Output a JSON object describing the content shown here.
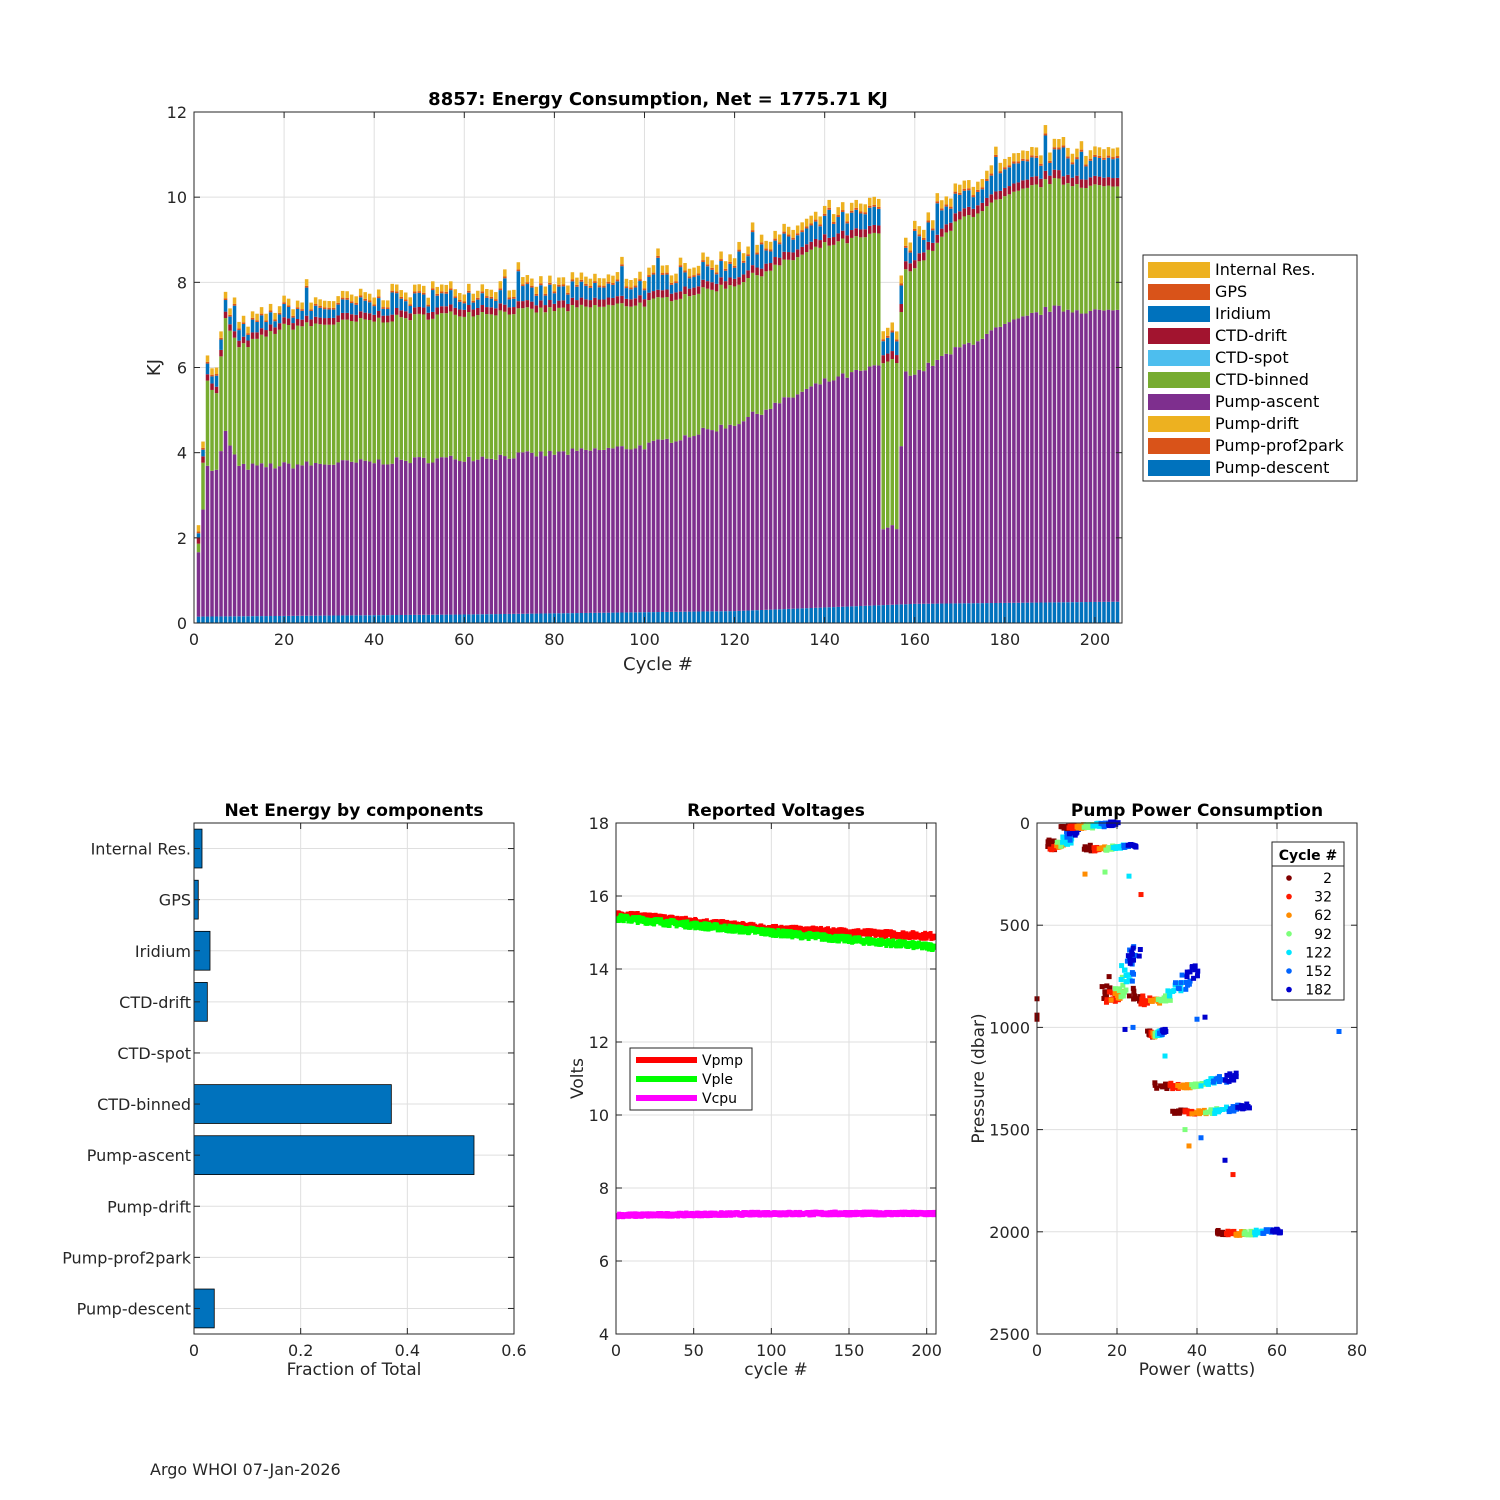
{
  "footer": "Argo WHOI 07-Jan-2026",
  "chart_data": [
    {
      "id": "energy",
      "type": "bar",
      "stacked": true,
      "title": "8857: Energy Consumption,  Net = 1775.71 KJ",
      "xlabel": "Cycle #",
      "ylabel": "KJ",
      "xlim": [
        0,
        206
      ],
      "ylim": [
        0,
        12
      ],
      "xticks": [
        0,
        20,
        40,
        60,
        80,
        100,
        120,
        140,
        160,
        180,
        200
      ],
      "yticks": [
        0,
        2,
        4,
        6,
        8,
        10,
        12
      ],
      "grid": true,
      "legend_position": "right",
      "cycles": {
        "start": 1,
        "end": 205
      },
      "series": [
        {
          "name": "Pump-descent",
          "color": "#0072BD",
          "knots": [
            [
              1,
              0.15
            ],
            [
              60,
              0.2
            ],
            [
              120,
              0.28
            ],
            [
              160,
              0.45
            ],
            [
              205,
              0.5
            ]
          ]
        },
        {
          "name": "Pump-prof2park",
          "color": "#D95319",
          "knots": [
            [
              1,
              0
            ],
            [
              205,
              0
            ]
          ]
        },
        {
          "name": "Pump-drift",
          "color": "#EDB120",
          "knots": [
            [
              1,
              0
            ],
            [
              205,
              0
            ]
          ]
        },
        {
          "name": "Pump-ascent",
          "color": "#7E2F8E",
          "knots": [
            [
              1,
              1.6
            ],
            [
              3,
              3.5
            ],
            [
              5,
              3.4
            ],
            [
              7,
              4.3
            ],
            [
              10,
              3.5
            ],
            [
              40,
              3.6
            ],
            [
              80,
              3.75
            ],
            [
              100,
              3.9
            ],
            [
              120,
              4.4
            ],
            [
              140,
              5.3
            ],
            [
              152,
              5.6
            ],
            [
              153,
              1.8
            ],
            [
              156,
              1.8
            ],
            [
              158,
              5.5
            ],
            [
              160,
              5.4
            ],
            [
              165,
              5.7
            ],
            [
              170,
              6.0
            ],
            [
              180,
              6.5
            ],
            [
              190,
              6.9
            ],
            [
              205,
              6.8
            ]
          ]
        },
        {
          "name": "CTD-binned",
          "color": "#77AC30",
          "knots": [
            [
              1,
              0.2
            ],
            [
              3,
              2.0
            ],
            [
              5,
              1.8
            ],
            [
              7,
              2.65
            ],
            [
              20,
              3.25
            ],
            [
              60,
              3.4
            ],
            [
              100,
              3.35
            ],
            [
              140,
              3.2
            ],
            [
              152,
              3.1
            ],
            [
              153,
              3.9
            ],
            [
              156,
              3.9
            ],
            [
              158,
              2.4
            ],
            [
              170,
              3.0
            ],
            [
              190,
              3.0
            ],
            [
              205,
              2.9
            ]
          ]
        },
        {
          "name": "CTD-spot",
          "color": "#4DBEEE",
          "knots": [
            [
              1,
              0
            ],
            [
              205,
              0
            ]
          ]
        },
        {
          "name": "CTD-drift",
          "color": "#A2142F",
          "knots": [
            [
              1,
              0.15
            ],
            [
              205,
              0.2
            ]
          ]
        },
        {
          "name": "Iridium",
          "color": "#0072BD",
          "knots": [
            [
              1,
              0.2
            ],
            [
              100,
              0.3
            ],
            [
              205,
              0.4
            ]
          ]
        },
        {
          "name": "GPS",
          "color": "#D95319",
          "knots": [
            [
              1,
              0.04
            ],
            [
              205,
              0.05
            ]
          ]
        },
        {
          "name": "Internal Res.",
          "color": "#EDB120",
          "knots": [
            [
              1,
              0.15
            ],
            [
              205,
              0.2
            ]
          ]
        }
      ],
      "legend": [
        "Internal Res.",
        "GPS",
        "Iridium",
        "CTD-drift",
        "CTD-spot",
        "CTD-binned",
        "Pump-ascent",
        "Pump-drift",
        "Pump-prof2park",
        "Pump-descent"
      ]
    },
    {
      "id": "fractions",
      "type": "bar",
      "orientation": "horizontal",
      "title": "Net Energy by components",
      "xlabel": "Fraction of Total",
      "xlim": [
        0,
        0.6
      ],
      "xticks": [
        0,
        0.2,
        0.4,
        0.6
      ],
      "xtick_labels": [
        "0",
        "0.2",
        "0.4",
        "0.6"
      ],
      "grid": true,
      "color": "#0072BD",
      "categories": [
        "Internal Res.",
        "GPS",
        "Iridium",
        "CTD-drift",
        "CTD-spot",
        "CTD-binned",
        "Pump-ascent",
        "Pump-drift",
        "Pump-prof2park",
        "Pump-descent"
      ],
      "values": [
        0.015,
        0.008,
        0.03,
        0.025,
        0.0,
        0.37,
        0.525,
        0.0,
        0.0,
        0.038
      ]
    },
    {
      "id": "voltages",
      "type": "scatter",
      "title": "Reported Voltages",
      "xlabel": "cycle #",
      "ylabel": "Volts",
      "xlim": [
        0,
        206
      ],
      "ylim": [
        4,
        18
      ],
      "xticks": [
        0,
        50,
        100,
        150,
        200
      ],
      "yticks": [
        4,
        6,
        8,
        10,
        12,
        14,
        16,
        18
      ],
      "grid": true,
      "legend_position": "middle-left",
      "series": [
        {
          "name": "Vpmp",
          "color": "#FF0000",
          "knots": [
            [
              1,
              15.5
            ],
            [
              100,
              15.1
            ],
            [
              205,
              14.9
            ]
          ]
        },
        {
          "name": "Vple",
          "color": "#00FF00",
          "knots": [
            [
              1,
              15.4
            ],
            [
              100,
              15.0
            ],
            [
              205,
              14.6
            ]
          ]
        },
        {
          "name": "Vcpu",
          "color": "#FF00FF",
          "knots": [
            [
              1,
              7.25
            ],
            [
              100,
              7.3
            ],
            [
              205,
              7.3
            ]
          ]
        }
      ],
      "gap_cycles": [
        121,
        122
      ]
    },
    {
      "id": "pump",
      "type": "scatter",
      "title": "Pump Power Consumption",
      "xlabel": "Power (watts)",
      "ylabel": "Pressure (dbar)",
      "xlim": [
        0,
        80
      ],
      "ylim": [
        0,
        2500
      ],
      "y_reversed": true,
      "xticks": [
        0,
        20,
        40,
        60,
        80
      ],
      "yticks": [
        0,
        500,
        1000,
        1500,
        2000,
        2500
      ],
      "grid": true,
      "legend_title": "Cycle #",
      "legend_position": "top-right",
      "legend": [
        {
          "label": "2",
          "color": "#800000"
        },
        {
          "label": "32",
          "color": "#FF1A00"
        },
        {
          "label": "62",
          "color": "#FF8C00"
        },
        {
          "label": "92",
          "color": "#7DFF7A"
        },
        {
          "label": "122",
          "color": "#00E5FF"
        },
        {
          "label": "152",
          "color": "#0064FF"
        },
        {
          "label": "182",
          "color": "#0000CD"
        }
      ],
      "groups": [
        {
          "p": [
            0,
            130
          ],
          "w": [
            3,
            10
          ],
          "spread": 5
        },
        {
          "p": [
            0,
            20
          ],
          "w": [
            6,
            20
          ],
          "spread": 2
        },
        {
          "p": [
            100,
            130
          ],
          "w": [
            12,
            25
          ],
          "spread": 3
        },
        {
          "p": [
            540,
            890
          ],
          "w": [
            17,
            25
          ],
          "spread": 6
        },
        {
          "p": [
            680,
            900
          ],
          "w": [
            24,
            40
          ],
          "spread": 6
        },
        {
          "p": [
            1010,
            1040
          ],
          "w": [
            28,
            32
          ],
          "spread": 2
        },
        {
          "p": [
            1220,
            1300
          ],
          "w": [
            30,
            50
          ],
          "spread": 4
        },
        {
          "p": [
            1380,
            1420
          ],
          "w": [
            34,
            53
          ],
          "spread": 4
        },
        {
          "p": [
            1990,
            2010
          ],
          "w": [
            45,
            61
          ],
          "spread": 2
        }
      ],
      "outliers": [
        [
          0,
          860
        ],
        [
          0,
          940
        ],
        [
          0,
          960
        ],
        [
          75.5,
          1020
        ],
        [
          40,
          960
        ],
        [
          42,
          950
        ],
        [
          26,
          350
        ],
        [
          12,
          250
        ],
        [
          17,
          240
        ],
        [
          23,
          260
        ],
        [
          41,
          1540
        ],
        [
          47,
          1650
        ],
        [
          49,
          1720
        ],
        [
          38,
          1580
        ],
        [
          37,
          1500
        ],
        [
          32,
          1140
        ],
        [
          24,
          1000
        ],
        [
          22,
          1010
        ]
      ]
    }
  ]
}
